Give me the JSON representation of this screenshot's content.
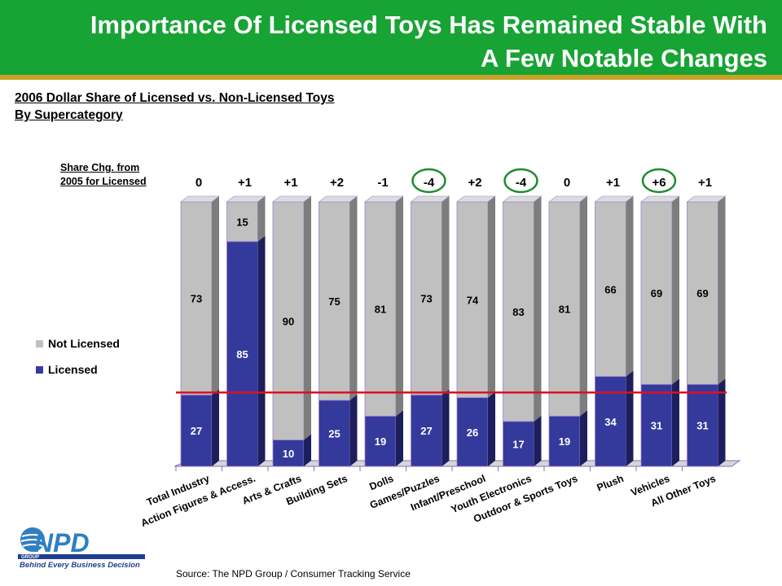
{
  "header": {
    "title_line1": "Importance Of Licensed Toys Has Remained Stable With",
    "title_line2": "A Few Notable Changes"
  },
  "subtitle": {
    "line1": "2006 Dollar Share of Licensed vs. Non-Licensed Toys",
    "line2": "By Supercategory"
  },
  "share_change": {
    "label_line1": "Share Chg. from",
    "label_line2": "2005 for Licensed"
  },
  "legend": {
    "not_licensed": "Not Licensed",
    "licensed": "Licensed"
  },
  "colors": {
    "header_bg": "#18a335",
    "accent_rule": "#c9a227",
    "licensed": "#343a9c",
    "not_licensed": "#c0c0c0",
    "reference_line": "#e0101c",
    "highlight_circle": "#1e8c2e"
  },
  "logo": {
    "brand": "NPD",
    "group": "GROUP",
    "tagline": "Behind Every Business Decision"
  },
  "source": "Source:  The NPD Group / Consumer Tracking Service",
  "chart_data": {
    "type": "bar",
    "stacked": true,
    "categories": [
      "Total Industry",
      "Action Figures & Access.",
      "Arts & Crafts",
      "Building Sets",
      "Dolls",
      "Games/Puzzles",
      "Infant/Preschool",
      "Youth Electronics",
      "Outdoor & Sports Toys",
      "Plush",
      "Vehicles",
      "All Other Toys"
    ],
    "series": [
      {
        "name": "Licensed",
        "values": [
          27,
          85,
          10,
          25,
          19,
          27,
          26,
          17,
          19,
          34,
          31,
          31
        ]
      },
      {
        "name": "Not Licensed",
        "values": [
          73,
          15,
          90,
          75,
          81,
          73,
          74,
          83,
          81,
          66,
          69,
          69
        ]
      }
    ],
    "share_change": [
      "0",
      "+1",
      "+1",
      "+2",
      "-1",
      "-4",
      "+2",
      "-4",
      "0",
      "+1",
      "+6",
      "+1"
    ],
    "highlighted_changes": [
      "Games/Puzzles",
      "Youth Electronics",
      "Vehicles"
    ],
    "reference_line_value": 27,
    "ylim": [
      0,
      100
    ],
    "legend_position": "left"
  }
}
